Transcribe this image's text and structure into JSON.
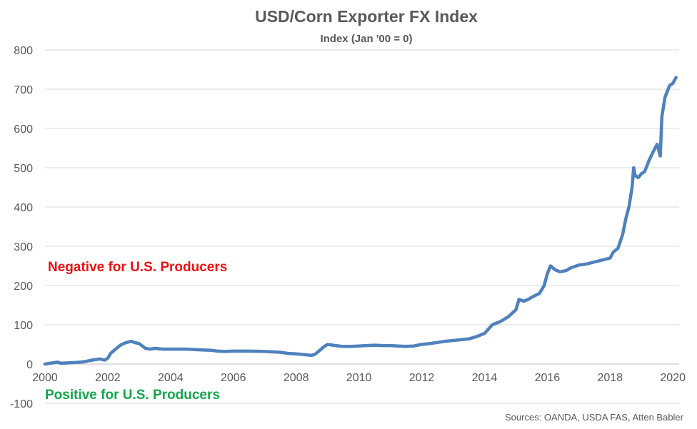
{
  "chart_data": {
    "type": "line",
    "title": "USD/Corn Exporter FX Index",
    "subtitle": "Index (Jan '00 = 0)",
    "xlabel": "",
    "ylabel": "",
    "ylim": [
      -100,
      800
    ],
    "xlim": [
      2000,
      2020.2
    ],
    "y_ticks": [
      "-100",
      "0",
      "100",
      "200",
      "300",
      "400",
      "500",
      "600",
      "700",
      "800"
    ],
    "x_ticks": [
      "2000",
      "2002",
      "2004",
      "2006",
      "2008",
      "2010",
      "2012",
      "2014",
      "2016",
      "2018",
      "2020"
    ],
    "grid": true,
    "series": [
      {
        "color": "#4f81bd",
        "x": [
          2000.0,
          2000.25,
          2000.4,
          2000.5,
          2000.75,
          2001.0,
          2001.25,
          2001.5,
          2001.75,
          2001.9,
          2002.0,
          2002.1,
          2002.25,
          2002.4,
          2002.5,
          2002.6,
          2002.75,
          2002.85,
          2003.0,
          2003.2,
          2003.35,
          2003.5,
          2003.75,
          2004.0,
          2004.5,
          2005.0,
          2005.3,
          2005.5,
          2005.75,
          2006.0,
          2006.5,
          2007.0,
          2007.5,
          2007.75,
          2008.0,
          2008.25,
          2008.5,
          2008.6,
          2008.75,
          2008.9,
          2009.0,
          2009.25,
          2009.5,
          2009.75,
          2010.0,
          2010.25,
          2010.5,
          2010.75,
          2011.0,
          2011.25,
          2011.5,
          2011.75,
          2012.0,
          2012.25,
          2012.5,
          2012.75,
          2013.0,
          2013.25,
          2013.5,
          2013.75,
          2014.0,
          2014.25,
          2014.5,
          2014.75,
          2015.0,
          2015.1,
          2015.25,
          2015.4,
          2015.5,
          2015.75,
          2015.9,
          2016.0,
          2016.1,
          2016.25,
          2016.4,
          2016.6,
          2016.75,
          2017.0,
          2017.25,
          2017.5,
          2017.75,
          2018.0,
          2018.1,
          2018.25,
          2018.4,
          2018.5,
          2018.6,
          2018.7,
          2018.75,
          2018.8,
          2018.9,
          2019.0,
          2019.1,
          2019.25,
          2019.4,
          2019.5,
          2019.55,
          2019.6,
          2019.65,
          2019.75,
          2019.9,
          2020.0,
          2020.1
        ],
        "values": [
          0,
          3,
          5,
          2,
          3,
          4,
          6,
          10,
          13,
          10,
          15,
          28,
          38,
          48,
          52,
          55,
          58,
          55,
          52,
          40,
          38,
          40,
          38,
          38,
          38,
          36,
          35,
          33,
          32,
          33,
          33,
          32,
          30,
          27,
          26,
          24,
          22,
          25,
          35,
          45,
          50,
          47,
          45,
          45,
          46,
          47,
          48,
          47,
          47,
          46,
          45,
          46,
          50,
          52,
          55,
          58,
          60,
          62,
          64,
          70,
          78,
          100,
          108,
          120,
          138,
          165,
          160,
          165,
          170,
          180,
          200,
          230,
          250,
          240,
          235,
          238,
          245,
          252,
          255,
          260,
          265,
          270,
          285,
          295,
          330,
          370,
          400,
          450,
          500,
          480,
          475,
          485,
          490,
          520,
          545,
          560,
          545,
          530,
          630,
          680,
          710,
          715,
          730
        ]
      }
    ],
    "annotations": {
      "negative": "Negative for U.S. Producers",
      "positive": "Positive for U.S. Producers"
    },
    "source": "Sources: OANDA, USDA FAS, Atten Babler"
  }
}
